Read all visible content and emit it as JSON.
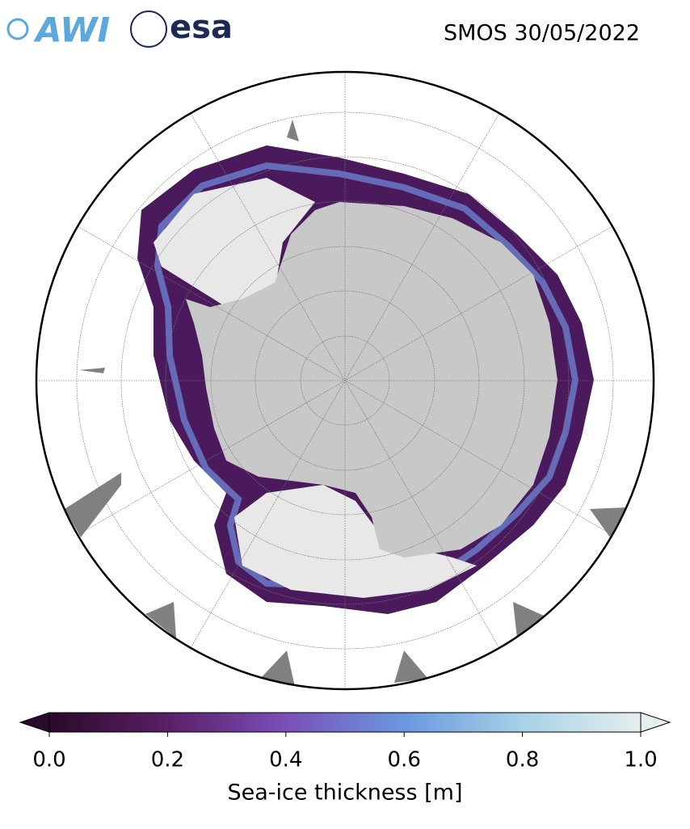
{
  "header": {
    "logos": [
      "AWI",
      "esa"
    ],
    "title": "SMOS 30/05/2022"
  },
  "colorbar": {
    "label": "Sea-ice thickness [m]",
    "lim": [
      0,
      1
    ],
    "ticks": [
      {
        "value": 0,
        "label": "0.0"
      },
      0.2,
      0.4,
      0.6,
      0.8,
      {
        "value": 1,
        "label": "1.0"
      }
    ],
    "colors": [
      "#2a0a2a",
      "#5a1f66",
      "#7a4fb8",
      "#6a98e0",
      "#a6d2e6",
      "#e6eeee"
    ]
  }
}
